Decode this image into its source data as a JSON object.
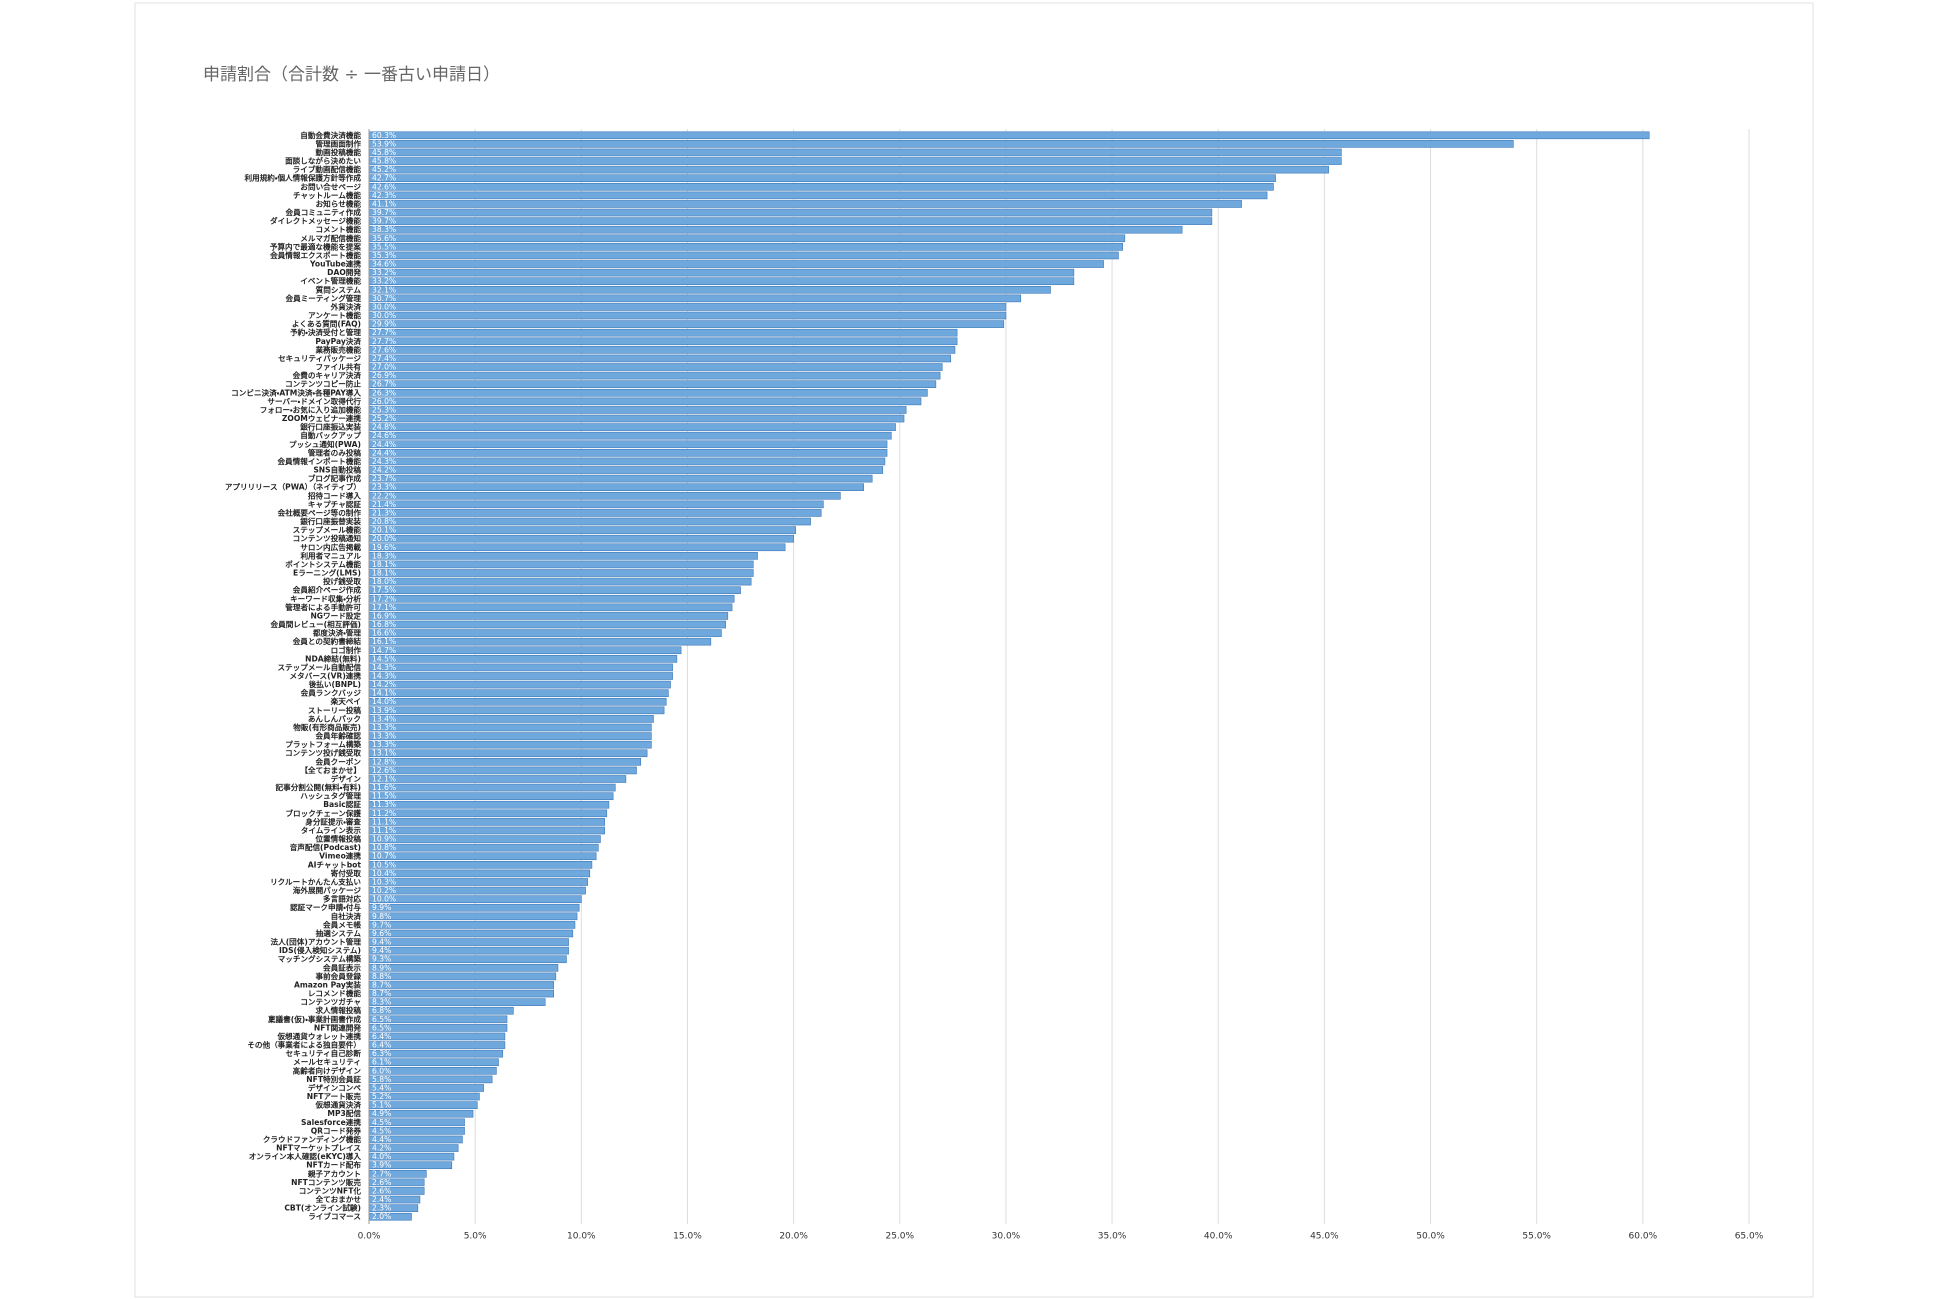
{
  "chart_data": {
    "type": "hbar",
    "title": "申請割合（合計数 ÷ 一番古い申請日）",
    "color": "#6fa8dc",
    "grid": true,
    "xlim": [
      0,
      65
    ],
    "xticks": [
      {
        "value": 0,
        "label": "0.0%"
      },
      {
        "value": 5,
        "label": "5.0%"
      },
      {
        "value": 10,
        "label": "10.0%"
      },
      {
        "value": 15,
        "label": "15.0%"
      },
      {
        "value": 20,
        "label": "20.0%"
      },
      {
        "value": 25,
        "label": "25.0%"
      },
      {
        "value": 30,
        "label": "30.0%"
      },
      {
        "value": 35,
        "label": "35.0%"
      },
      {
        "value": 40,
        "label": "40.0%"
      },
      {
        "value": 45,
        "label": "45.0%"
      },
      {
        "value": 50,
        "label": "50.0%"
      },
      {
        "value": 55,
        "label": "55.0%"
      },
      {
        "value": 60,
        "label": "60.0%"
      },
      {
        "value": 65,
        "label": "65.0%"
      }
    ],
    "categories": [
      "自動会費決済機能",
      "管理画面制作",
      "動画投稿機能",
      "面談しながら決めたい",
      "ライブ動画配信機能",
      "利用規約・個人情報保護方針等作成",
      "お問い合せページ",
      "チャットルーム機能",
      "お知らせ機能",
      "会員コミュニティ作成",
      "ダイレクトメッセージ機能",
      "コメント機能",
      "メルマガ配信機能",
      "予算内で最適な機能を提案",
      "会員情報エクスポート機能",
      "YouTube連携",
      "DAO開発",
      "イベント管理機能",
      "質問システム",
      "会員ミーティング管理",
      "外貨決済",
      "アンケート機能",
      "よくある質問(FAQ)",
      "予約・決済受付と管理",
      "PayPay決済",
      "業務販売機能",
      "セキュリティパッケージ",
      "ファイル共有",
      "会費のキャリア決済",
      "コンテンツコピー防止",
      "コンビニ決済・ATM決済・各種PAY導入",
      "サーバー・ドメイン取得代行",
      "フォロー・お気に入り追加機能",
      "ZOOMウェビナー連携",
      "銀行口座振込実装",
      "自動バックアップ",
      "プッシュ通知(PWA)",
      "管理者のみ投稿",
      "会員情報インポート機能",
      "SNS自動投稿",
      "ブログ記事作成",
      "アプリリリース（PWA）（ネイティブ）",
      "招待コード導入",
      "キャプチャ認証",
      "会社概要ページ等の制作",
      "銀行口座振替実装",
      "ステップメール機能",
      "コンテンツ投稿通知",
      "サロン内広告掲載",
      "利用者マニュアル",
      "ポイントシステム機能",
      "Eラーニング(LMS)",
      "投げ銭受取",
      "会員紹介ページ作成",
      "キーワード収集・分析",
      "管理者による手動許可",
      "NGワード設定",
      "会員間レビュー(相互評価)",
      "都度決済・管理",
      "会員との契約書締結",
      "ロゴ制作",
      "NDA締結(無料)",
      "ステップメール自動配信",
      "メタバース(VR)連携",
      "後払い(BNPL)",
      "会員ランクバッジ",
      "楽天ペイ",
      "ストーリー投稿",
      "あんしんパック",
      "物販(有形商品販売)",
      "会員年齢確認",
      "プラットフォーム構築",
      "コンテンツ投げ銭受取",
      "会員クーポン",
      "【全ておまかせ】",
      "デザイン",
      "記事分割公開(無料・有料)",
      "ハッシュタグ管理",
      "Basic認証",
      "ブロックチェーン保護",
      "身分証提示・審査",
      "タイムライン表示",
      "位置情報投稿",
      "音声配信(Podcast)",
      "Vimeo連携",
      "AIチャットbot",
      "寄付受取",
      "リクルートかんたん支払い",
      "海外展開パッケージ",
      "多言語対応",
      "認証マーク申請・付与",
      "自社決済",
      "会員メモ帳",
      "抽選システム",
      "法人(団体)アカウント管理",
      "IDS(侵入検知システム)",
      "マッチングシステム構築",
      "会員証表示",
      "事前会員登録",
      "Amazon Pay実装",
      "レコメンド機能",
      "コンテンツガチャ",
      "求人情報投稿",
      "稟議書(仮)・事業計画書作成",
      "NFT関連開発",
      "仮想通貨ウォレット連携",
      "その他（事業者による独自要件）",
      "セキュリティ自己診断",
      "メールセキュリティ",
      "高齢者向けデザイン",
      "NFT特別会員証",
      "デザインコンペ",
      "NFTアート販売",
      "仮想通貨決済",
      "MP3配信",
      "Salesforce連携",
      "QRコード発券",
      "クラウドファンディング機能",
      "NFTマーケットプレイス",
      "オンライン本人確認(eKYC)導入",
      "NFTカード配布",
      "親子アカウント",
      "NFTコンテンツ販売",
      "コンテンツNFT化",
      "全ておまかせ",
      "CBT(オンライン試験)",
      "ライブコマース"
    ],
    "values": [
      60.3,
      53.9,
      45.8,
      45.8,
      45.2,
      42.7,
      42.6,
      42.3,
      41.1,
      39.7,
      39.7,
      38.3,
      35.6,
      35.5,
      35.3,
      34.6,
      33.2,
      33.2,
      32.1,
      30.7,
      30.0,
      30.0,
      29.9,
      27.7,
      27.7,
      27.6,
      27.4,
      27.0,
      26.9,
      26.7,
      26.3,
      26.0,
      25.3,
      25.2,
      24.8,
      24.6,
      24.4,
      24.4,
      24.3,
      24.2,
      23.7,
      23.3,
      22.2,
      21.4,
      21.3,
      20.8,
      20.1,
      20.0,
      19.6,
      18.3,
      18.1,
      18.1,
      18.0,
      17.5,
      17.2,
      17.1,
      16.9,
      16.8,
      16.6,
      16.1,
      14.7,
      14.5,
      14.3,
      14.3,
      14.2,
      14.1,
      14.0,
      13.9,
      13.4,
      13.3,
      13.3,
      13.3,
      13.1,
      12.8,
      12.6,
      12.1,
      11.6,
      11.5,
      11.3,
      11.2,
      11.1,
      11.1,
      10.9,
      10.8,
      10.7,
      10.5,
      10.4,
      10.3,
      10.2,
      10.0,
      9.9,
      9.8,
      9.7,
      9.6,
      9.4,
      9.4,
      9.3,
      8.9,
      8.8,
      8.7,
      8.7,
      8.3,
      6.8,
      6.5,
      6.5,
      6.4,
      6.4,
      6.3,
      6.1,
      6.0,
      5.8,
      5.4,
      5.2,
      5.1,
      4.9,
      4.5,
      4.5,
      4.4,
      4.2,
      4.0,
      3.9,
      2.7,
      2.6,
      2.6,
      2.4,
      2.3,
      2.0
    ],
    "value_labels": [
      "60.3%",
      "53.9%",
      "45.8%",
      "45.8%",
      "45.2%",
      "42.7%",
      "42.6%",
      "42.3%",
      "41.1%",
      "39.7%",
      "39.7%",
      "38.3%",
      "35.6%",
      "35.5%",
      "35.3%",
      "34.6%",
      "33.2%",
      "33.2%",
      "32.1%",
      "30.7%",
      "30.0%",
      "30.0%",
      "29.9%",
      "27.7%",
      "27.7%",
      "27.6%",
      "27.4%",
      "27.0%",
      "26.9%",
      "26.7%",
      "26.3%",
      "26.0%",
      "25.3%",
      "25.2%",
      "24.8%",
      "24.6%",
      "24.4%",
      "24.4%",
      "24.3%",
      "24.2%",
      "23.7%",
      "23.3%",
      "22.2%",
      "21.4%",
      "21.3%",
      "20.8%",
      "20.1%",
      "20.0%",
      "19.6%",
      "18.3%",
      "18.1%",
      "18.1%",
      "18.0%",
      "17.5%",
      "17.2%",
      "17.1%",
      "16.9%",
      "16.8%",
      "16.6%",
      "16.1%",
      "14.7%",
      "14.5%",
      "14.3%",
      "14.3%",
      "14.2%",
      "14.1%",
      "14.0%",
      "13.9%",
      "13.4%",
      "13.3%",
      "13.3%",
      "13.3%",
      "13.1%",
      "12.8%",
      "12.6%",
      "12.1%",
      "11.6%",
      "11.5%",
      "11.3%",
      "11.2%",
      "11.1%",
      "11.1%",
      "10.9%",
      "10.8%",
      "10.7%",
      "10.5%",
      "10.4%",
      "10.3%",
      "10.2%",
      "10.0%",
      "9.9%",
      "9.8%",
      "9.7%",
      "9.6%",
      "9.4%",
      "9.4%",
      "9.3%",
      "8.9%",
      "8.8%",
      "8.7%",
      "8.7%",
      "8.3%",
      "6.8%",
      "6.5%",
      "6.5%",
      "6.4%",
      "6.4%",
      "6.3%",
      "6.1%",
      "6.0%",
      "5.8%",
      "5.4%",
      "5.2%",
      "5.1%",
      "4.9%",
      "4.5%",
      "4.5%",
      "4.4%",
      "4.2%",
      "4.0%",
      "3.9%",
      "2.7%",
      "2.6%",
      "2.6%",
      "2.4%",
      "2.3%",
      "2.0%"
    ]
  }
}
